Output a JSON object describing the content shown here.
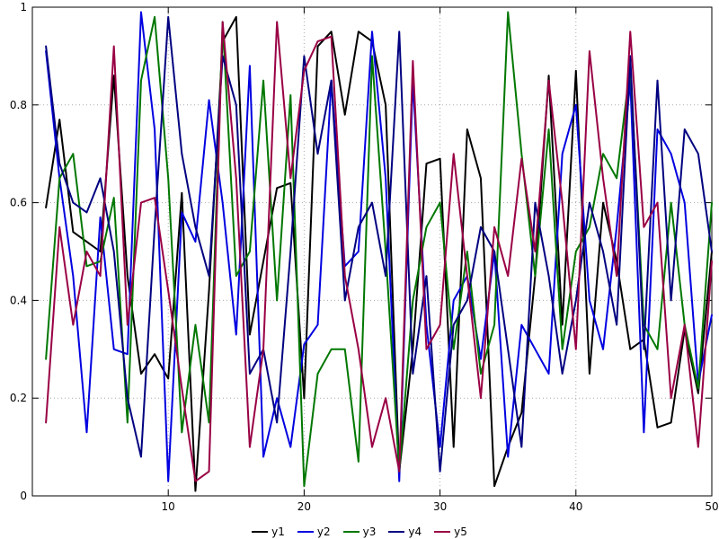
{
  "chart_data": {
    "type": "line",
    "title": "",
    "xlabel": "",
    "ylabel": "",
    "xlim": [
      0,
      50
    ],
    "ylim": [
      0,
      1
    ],
    "x_ticks": [
      10,
      20,
      30,
      40,
      50
    ],
    "x_tick_labels": [
      "10",
      "20",
      "30",
      "40",
      "50"
    ],
    "y_ticks": [
      0,
      0.2,
      0.4,
      0.6,
      0.8,
      1
    ],
    "y_tick_labels": [
      "0",
      "0.2",
      "0.4",
      "0.6",
      "0.8",
      "1"
    ],
    "grid": true,
    "grid_color": "#aaaaaa",
    "border_color": "#000000",
    "legend_position": "bottom-center",
    "x": [
      1,
      2,
      3,
      4,
      5,
      6,
      7,
      8,
      9,
      10,
      11,
      12,
      13,
      14,
      15,
      16,
      17,
      18,
      19,
      20,
      21,
      22,
      23,
      24,
      25,
      26,
      27,
      28,
      29,
      30,
      31,
      32,
      33,
      34,
      35,
      36,
      37,
      38,
      39,
      40,
      41,
      42,
      43,
      44,
      45,
      46,
      47,
      48,
      49,
      50
    ],
    "series": [
      {
        "name": "y1",
        "color": "#000000",
        "values": [
          0.59,
          0.77,
          0.54,
          0.52,
          0.5,
          0.86,
          0.45,
          0.25,
          0.29,
          0.24,
          0.62,
          0.01,
          0.42,
          0.93,
          0.98,
          0.33,
          0.48,
          0.63,
          0.64,
          0.2,
          0.92,
          0.95,
          0.78,
          0.95,
          0.93,
          0.8,
          0.05,
          0.3,
          0.68,
          0.69,
          0.1,
          0.75,
          0.65,
          0.02,
          0.1,
          0.17,
          0.45,
          0.86,
          0.35,
          0.87,
          0.25,
          0.6,
          0.48,
          0.3,
          0.32,
          0.14,
          0.15,
          0.34,
          0.21,
          0.5
        ]
      },
      {
        "name": "y2",
        "color": "#0000e0",
        "values": [
          0.91,
          0.65,
          0.45,
          0.13,
          0.57,
          0.3,
          0.29,
          0.99,
          0.75,
          0.03,
          0.58,
          0.52,
          0.81,
          0.6,
          0.33,
          0.88,
          0.08,
          0.2,
          0.1,
          0.31,
          0.35,
          0.85,
          0.47,
          0.5,
          0.95,
          0.65,
          0.03,
          0.85,
          0.35,
          0.1,
          0.4,
          0.45,
          0.28,
          0.5,
          0.08,
          0.35,
          0.3,
          0.25,
          0.7,
          0.8,
          0.4,
          0.3,
          0.55,
          0.85,
          0.13,
          0.75,
          0.7,
          0.6,
          0.23,
          0.37
        ]
      },
      {
        "name": "y3",
        "color": "#007700",
        "values": [
          0.28,
          0.65,
          0.7,
          0.47,
          0.48,
          0.61,
          0.15,
          0.85,
          0.98,
          0.65,
          0.13,
          0.35,
          0.15,
          0.97,
          0.45,
          0.5,
          0.85,
          0.4,
          0.82,
          0.02,
          0.25,
          0.3,
          0.3,
          0.07,
          0.9,
          0.5,
          0.05,
          0.4,
          0.55,
          0.6,
          0.3,
          0.5,
          0.25,
          0.35,
          0.99,
          0.7,
          0.45,
          0.75,
          0.3,
          0.5,
          0.55,
          0.7,
          0.65,
          0.88,
          0.35,
          0.3,
          0.6,
          0.35,
          0.22,
          0.6
        ]
      },
      {
        "name": "y4",
        "color": "#000080",
        "values": [
          0.92,
          0.68,
          0.6,
          0.58,
          0.65,
          0.5,
          0.2,
          0.08,
          0.55,
          0.98,
          0.7,
          0.55,
          0.45,
          0.9,
          0.8,
          0.25,
          0.3,
          0.15,
          0.5,
          0.9,
          0.7,
          0.85,
          0.4,
          0.55,
          0.6,
          0.45,
          0.95,
          0.25,
          0.45,
          0.05,
          0.35,
          0.4,
          0.55,
          0.5,
          0.3,
          0.1,
          0.6,
          0.45,
          0.25,
          0.4,
          0.6,
          0.5,
          0.35,
          0.9,
          0.3,
          0.85,
          0.4,
          0.75,
          0.7,
          0.5
        ]
      },
      {
        "name": "y5",
        "color": "#990044",
        "values": [
          0.15,
          0.55,
          0.35,
          0.5,
          0.45,
          0.92,
          0.35,
          0.6,
          0.61,
          0.42,
          0.22,
          0.03,
          0.05,
          0.97,
          0.65,
          0.1,
          0.3,
          0.97,
          0.65,
          0.87,
          0.93,
          0.94,
          0.45,
          0.3,
          0.1,
          0.2,
          0.05,
          0.89,
          0.3,
          0.35,
          0.7,
          0.45,
          0.2,
          0.55,
          0.45,
          0.69,
          0.5,
          0.85,
          0.6,
          0.3,
          0.91,
          0.65,
          0.45,
          0.95,
          0.55,
          0.6,
          0.2,
          0.35,
          0.1,
          0.48
        ]
      }
    ]
  }
}
